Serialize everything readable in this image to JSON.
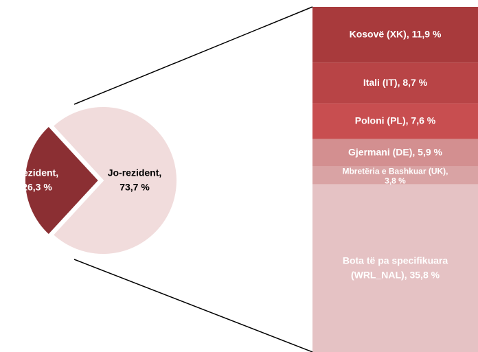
{
  "chart_data": {
    "type": "pie-of-bar",
    "pie": {
      "categories": [
        "Rezident",
        "Jo-rezident"
      ],
      "values": [
        26.3,
        73.7
      ],
      "value_labels": [
        [
          "Rezident,",
          "26,3 %"
        ],
        [
          "Jo-rezident,",
          "73,7 %"
        ]
      ],
      "colors": [
        "#8b2f33",
        "#f1dcdc"
      ]
    },
    "bar": {
      "values": [
        11.9,
        8.7,
        7.6,
        5.9,
        3.8,
        35.8
      ],
      "value_labels": [
        [
          "Kosovë (XK), 11,9 %"
        ],
        [
          "Itali (IT), 8,7 %"
        ],
        [
          "Poloni (PL), 7,6 %"
        ],
        [
          "Gjermani (DE), 5,9 %"
        ],
        [
          "Mbretëria e Bashkuar (UK),",
          "3,8 %"
        ],
        [
          "Bota të pa specifikuara",
          "(WRL_NAL), 35,8 %"
        ]
      ],
      "colors": [
        "#a83a3c",
        "#b84446",
        "#c84e50",
        "#d38f90",
        "#d9a3a4",
        "#e5c2c4"
      ]
    }
  }
}
